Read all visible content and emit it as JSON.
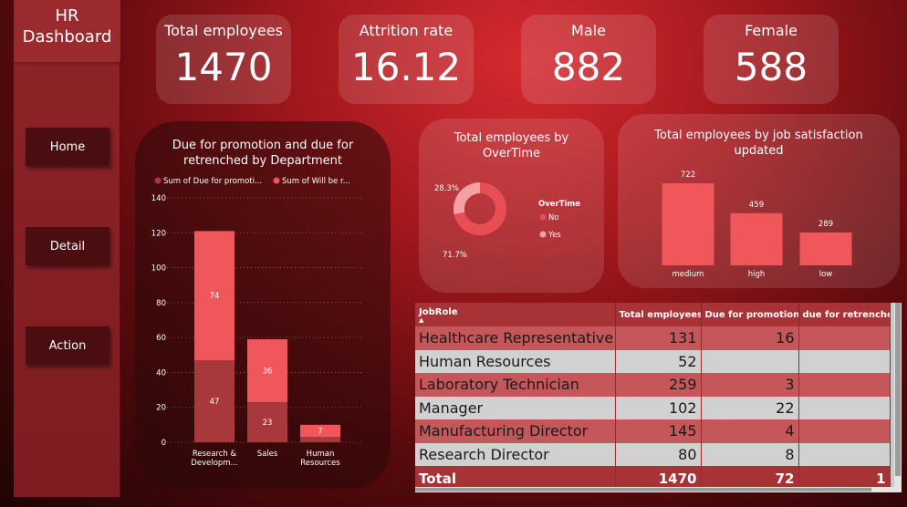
{
  "sidebar": {
    "title_line1": "HR",
    "title_line2": "Dashboard",
    "nav": [
      "Home",
      "Detail",
      "Action"
    ]
  },
  "kpis": [
    {
      "label": "Total employees",
      "value": "1470"
    },
    {
      "label": "Attrition rate",
      "value": "16.12"
    },
    {
      "label": "Male",
      "value": "882"
    },
    {
      "label": "Female",
      "value": "588"
    }
  ],
  "colors": {
    "dark_bar": "#a8383c",
    "light_bar": "#ef575b",
    "donut_no": "#e84f55",
    "donut_yes": "#f3a1a4"
  },
  "chart_data": [
    {
      "type": "bar",
      "stacked": true,
      "title": "Due for promotion and due for retrenched by Department",
      "title_line1": "Due for promotion and due for",
      "title_line2": "retrenched by Department",
      "legend": [
        "Sum of Due for promoti...",
        "Sum of Will be r..."
      ],
      "categories": [
        [
          "Research &",
          "Developm..."
        ],
        [
          "Sales"
        ],
        [
          "Human",
          "Resources"
        ]
      ],
      "series": [
        {
          "name": "Sum of Due for promoti...",
          "values": [
            47,
            23,
            3
          ]
        },
        {
          "name": "Sum of Will be r...",
          "values": [
            74,
            36,
            7
          ]
        }
      ],
      "data_labels": {
        "dark": [
          "47",
          "23",
          ""
        ],
        "light": [
          "74",
          "36",
          "7"
        ]
      },
      "ylim": [
        0,
        140
      ],
      "yticks": [
        "0",
        "20",
        "40",
        "60",
        "80",
        "100",
        "120",
        "140"
      ],
      "grid": true
    },
    {
      "type": "pie",
      "donut": true,
      "title_line1": "Total employees by",
      "title_line2": "OverTime",
      "legend_title": "OverTime",
      "slices": [
        {
          "label": "No",
          "value": 71.7,
          "text": "71.7%"
        },
        {
          "label": "Yes",
          "value": 28.3,
          "text": "28.3%"
        }
      ]
    },
    {
      "type": "bar",
      "title_line1": "Total employees by job satisfaction",
      "title_line2": "updated",
      "categories": [
        "medium",
        "high",
        "low"
      ],
      "values": [
        722,
        459,
        289
      ],
      "value_labels": [
        "722",
        "459",
        "289"
      ],
      "ylim": [
        0,
        722
      ]
    }
  ],
  "table": {
    "columns": [
      "JobRole",
      "Total employees",
      "Due for promotion",
      "due for retrenchem"
    ],
    "rows": [
      [
        "Healthcare Representative",
        "131",
        "16",
        ""
      ],
      [
        "Human Resources",
        "52",
        "",
        ""
      ],
      [
        "Laboratory Technician",
        "259",
        "3",
        ""
      ],
      [
        "Manager",
        "102",
        "22",
        ""
      ],
      [
        "Manufacturing Director",
        "145",
        "4",
        ""
      ],
      [
        "Research Director",
        "80",
        "8",
        ""
      ]
    ],
    "total": [
      "Total",
      "1470",
      "72",
      "1"
    ]
  }
}
